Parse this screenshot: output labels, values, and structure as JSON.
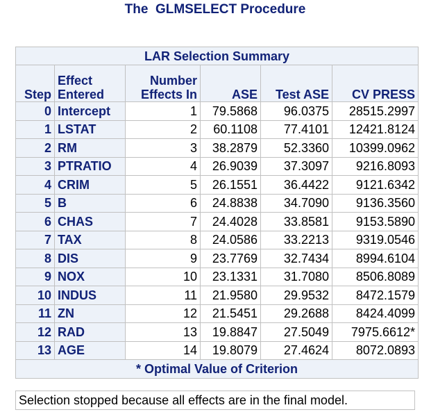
{
  "title": "The  GLMSELECT Procedure",
  "table": {
    "caption": "LAR Selection Summary",
    "headers": [
      "Step",
      "Effect Entered",
      "Number Effects In",
      "ASE",
      "Test ASE",
      "CV PRESS"
    ],
    "rows": [
      [
        "0",
        "Intercept",
        "1",
        "79.5868",
        "96.0375",
        "28515.2997"
      ],
      [
        "1",
        "LSTAT",
        "2",
        "60.1108",
        "77.4101",
        "12421.8124"
      ],
      [
        "2",
        "RM",
        "3",
        "38.2879",
        "52.3360",
        "10399.0962"
      ],
      [
        "3",
        "PTRATIO",
        "4",
        "26.9039",
        "37.3097",
        "9216.8093"
      ],
      [
        "4",
        "CRIM",
        "5",
        "26.1551",
        "36.4422",
        "9121.6342"
      ],
      [
        "5",
        "B",
        "6",
        "24.8838",
        "34.7090",
        "9136.3560"
      ],
      [
        "6",
        "CHAS",
        "7",
        "24.4028",
        "33.8581",
        "9153.5890"
      ],
      [
        "7",
        "TAX",
        "8",
        "24.0586",
        "33.2213",
        "9319.0546"
      ],
      [
        "8",
        "DIS",
        "9",
        "23.7769",
        "32.7434",
        "8994.6104"
      ],
      [
        "9",
        "NOX",
        "10",
        "23.1331",
        "31.7080",
        "8506.8089"
      ],
      [
        "10",
        "INDUS",
        "11",
        "21.9580",
        "29.9532",
        "8472.1579"
      ],
      [
        "11",
        "ZN",
        "12",
        "21.5451",
        "29.2688",
        "8424.4099"
      ],
      [
        "12",
        "RAD",
        "13",
        "19.8847",
        "27.5049",
        "7975.6612*"
      ],
      [
        "13",
        "AGE",
        "14",
        "19.8079",
        "27.4624",
        "8072.0893"
      ]
    ],
    "footnote": "* Optimal Value of Criterion"
  },
  "note": "Selection stopped because all effects are in the final model."
}
